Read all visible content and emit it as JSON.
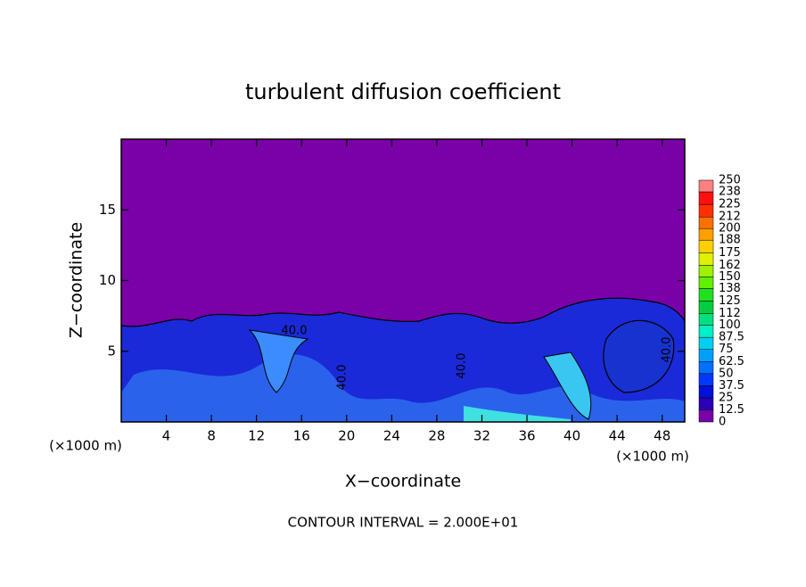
{
  "chart_data": {
    "type": "contour",
    "title": "turbulent diffusion coefficient",
    "xlabel": "X−coordinate",
    "ylabel": "Z−coordinate",
    "x_unit_label": "(×1000 m)",
    "footnote": "CONTOUR INTERVAL = 2.000E+01",
    "xlim": [
      0,
      50
    ],
    "ylim": [
      0,
      20
    ],
    "xticks": [
      4,
      8,
      12,
      16,
      20,
      24,
      28,
      32,
      36,
      40,
      44,
      48
    ],
    "yticks": [
      5,
      10,
      15
    ],
    "background_color": "#7a00a8",
    "contour_labels": [
      "40.0",
      "40.0",
      "40.0",
      "40.0"
    ],
    "colorbar": {
      "levels": [
        0,
        12.5,
        25,
        37.5,
        50,
        62.5,
        75,
        87.5,
        100,
        112,
        125,
        138,
        150,
        162,
        175,
        188,
        200,
        212,
        225,
        238,
        250
      ],
      "colors": [
        "#7a00a8",
        "#2a00b8",
        "#0010d8",
        "#0038ff",
        "#0070ff",
        "#00a0ff",
        "#00d0f0",
        "#00f0c8",
        "#00e080",
        "#00d040",
        "#20e020",
        "#60f000",
        "#a0f000",
        "#e0f000",
        "#ffd000",
        "#ffa000",
        "#ff7000",
        "#ff3000",
        "#ff1010",
        "#ff8080"
      ]
    }
  }
}
